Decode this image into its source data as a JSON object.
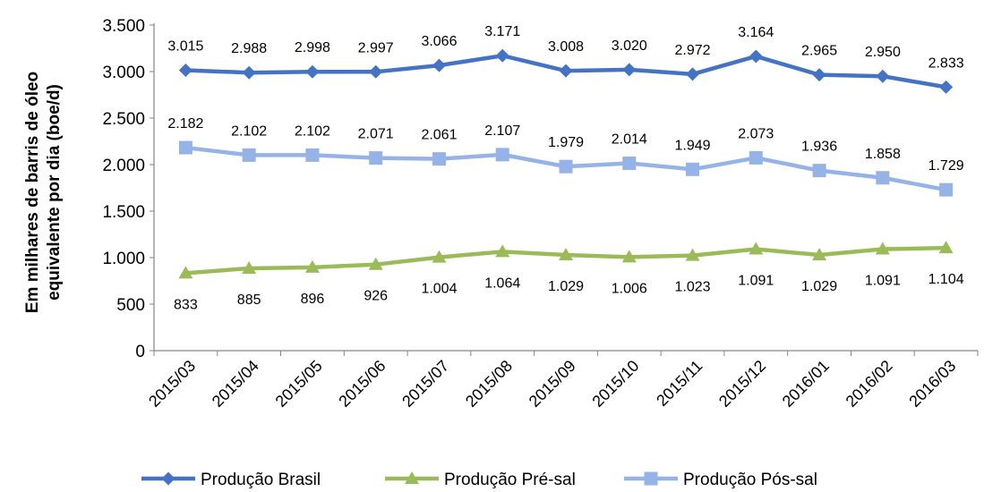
{
  "chart_data": {
    "type": "line",
    "title": "",
    "xlabel": "",
    "ylabel_lines": [
      "Em milhares de barris de óleo",
      "equivalente por dia (boe/d)"
    ],
    "ylim": [
      0,
      3500
    ],
    "yticks": [
      0,
      500,
      1000,
      1500,
      2000,
      2500,
      3000,
      3500
    ],
    "ytick_labels": [
      "0",
      "500",
      "1.000",
      "1.500",
      "2.000",
      "2.500",
      "3.000",
      "3.500"
    ],
    "grid": false,
    "legend_position": "bottom",
    "categories": [
      "2015/03",
      "2015/04",
      "2015/05",
      "2015/06",
      "2015/07",
      "2015/08",
      "2015/09",
      "2015/10",
      "2015/11",
      "2015/12",
      "2016/01",
      "2016/02",
      "2016/03"
    ],
    "series": [
      {
        "name": "Produção Brasil",
        "color": "#4472C4",
        "marker": "diamond",
        "label_position": "above",
        "values": [
          3015,
          2988,
          2998,
          2997,
          3066,
          3171,
          3008,
          3020,
          2972,
          3164,
          2965,
          2950,
          2833
        ],
        "labels": [
          "3.015",
          "2.988",
          "2.998",
          "2.997",
          "3.066",
          "3.171",
          "3.008",
          "3.020",
          "2.972",
          "3.164",
          "2.965",
          "2.950",
          "2.833"
        ]
      },
      {
        "name": "Produção Pré-sal",
        "color": "#9BBB59",
        "marker": "triangle",
        "label_position": "below",
        "values": [
          833,
          885,
          896,
          926,
          1004,
          1064,
          1029,
          1006,
          1023,
          1091,
          1029,
          1091,
          1104
        ],
        "labels": [
          "833",
          "885",
          "896",
          "926",
          "1.004",
          "1.064",
          "1.029",
          "1.006",
          "1.023",
          "1.091",
          "1.029",
          "1.091",
          "1.104"
        ]
      },
      {
        "name": "Produção Pós-sal",
        "color": "#95B3E7",
        "marker": "square",
        "label_position": "above",
        "values": [
          2182,
          2102,
          2102,
          2071,
          2061,
          2107,
          1979,
          2014,
          1949,
          2073,
          1936,
          1858,
          1729
        ],
        "labels": [
          "2.182",
          "2.102",
          "2.102",
          "2.071",
          "2.061",
          "2.107",
          "1.979",
          "2.014",
          "1.949",
          "2.073",
          "1.936",
          "1.858",
          "1.729"
        ]
      }
    ]
  }
}
